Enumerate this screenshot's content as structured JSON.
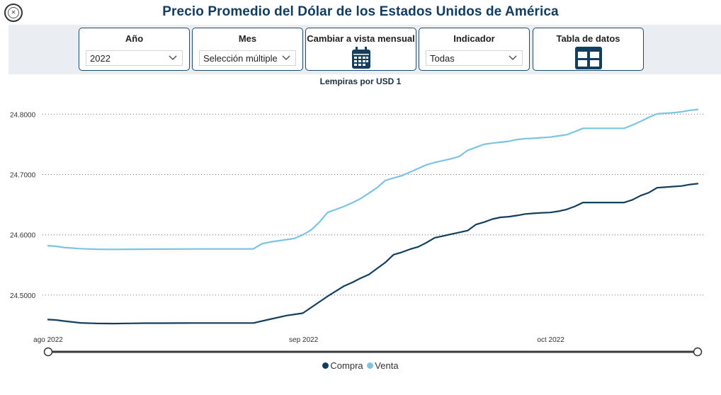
{
  "header": {
    "title": "Precio Promedio del Dólar de los Estados Unidos de América",
    "logo_icon": "seal-icon"
  },
  "filters": {
    "year": {
      "label": "Año",
      "value": "2022"
    },
    "month": {
      "label": "Mes",
      "value": "Selección múltiple"
    },
    "view": {
      "label": "Cambiar a vista mensual",
      "icon": "calendar-icon"
    },
    "indicator": {
      "label": "Indicador",
      "value": "Todas"
    },
    "table": {
      "label": "Tabla de datos",
      "icon": "table-icon"
    }
  },
  "colors": {
    "compra": "#123f5e",
    "venta": "#7cc4e1",
    "accent": "#1b4a6e"
  },
  "chart_data": {
    "type": "line",
    "title": "Lempiras por USD 1",
    "ylim": [
      24.44,
      24.825
    ],
    "yticks": [
      24.5,
      24.6,
      24.7,
      24.8
    ],
    "ytick_labels": [
      "24.5000",
      "24.6000",
      "24.7000",
      "24.8000"
    ],
    "x_start": "2022-08-01",
    "x_end": "2022-10-31",
    "xticks": [
      {
        "day": 0,
        "label": "ago 2022"
      },
      {
        "day": 31,
        "label": "sep 2022"
      },
      {
        "day": 61,
        "label": "oct 2022"
      }
    ],
    "grid": true,
    "legend_position": "bottom-center",
    "series": [
      {
        "name": "Compra",
        "points": [
          [
            0,
            24.4595
          ],
          [
            1,
            24.4588
          ],
          [
            2,
            24.457
          ],
          [
            4,
            24.454
          ],
          [
            6,
            24.453
          ],
          [
            8,
            24.4528
          ],
          [
            10,
            24.4532
          ],
          [
            12,
            24.4535
          ],
          [
            14,
            24.4535
          ],
          [
            16,
            24.4536
          ],
          [
            18,
            24.4537
          ],
          [
            20,
            24.4537
          ],
          [
            25,
            24.4537
          ],
          [
            27,
            24.46
          ],
          [
            29,
            24.466
          ],
          [
            31,
            24.47
          ],
          [
            34,
            24.498
          ],
          [
            36,
            24.515
          ],
          [
            37,
            24.521
          ],
          [
            38,
            24.528
          ],
          [
            39,
            24.534
          ],
          [
            40,
            24.544
          ],
          [
            41,
            24.554
          ],
          [
            42,
            24.567
          ],
          [
            43,
            24.571
          ],
          [
            44,
            24.576
          ],
          [
            45,
            24.58
          ],
          [
            46,
            24.587
          ],
          [
            47,
            24.595
          ],
          [
            48,
            24.598
          ],
          [
            49,
            24.601
          ],
          [
            50,
            24.604
          ],
          [
            51,
            24.607
          ],
          [
            52,
            24.617
          ],
          [
            53,
            24.621
          ],
          [
            54,
            24.626
          ],
          [
            55,
            24.629
          ],
          [
            56,
            24.63
          ],
          [
            57,
            24.632
          ],
          [
            58,
            24.6345
          ],
          [
            59,
            24.6355
          ],
          [
            60,
            24.6365
          ],
          [
            61,
            24.637
          ],
          [
            62,
            24.639
          ],
          [
            63,
            24.642
          ],
          [
            64,
            24.647
          ],
          [
            65,
            24.6535
          ],
          [
            66,
            24.6535
          ],
          [
            67,
            24.6535
          ],
          [
            68,
            24.6535
          ],
          [
            69,
            24.6535
          ],
          [
            70,
            24.6535
          ],
          [
            71,
            24.658
          ],
          [
            72,
            24.665
          ],
          [
            73,
            24.67
          ],
          [
            74,
            24.678
          ],
          [
            75,
            24.679
          ],
          [
            76,
            24.68
          ],
          [
            77,
            24.681
          ],
          [
            78,
            24.6835
          ],
          [
            79,
            24.685
          ]
        ]
      },
      {
        "name": "Venta",
        "points": [
          [
            0,
            24.582
          ],
          [
            1,
            24.581
          ],
          [
            2,
            24.579
          ],
          [
            4,
            24.577
          ],
          [
            6,
            24.576
          ],
          [
            8,
            24.5758
          ],
          [
            10,
            24.576
          ],
          [
            12,
            24.5762
          ],
          [
            14,
            24.5763
          ],
          [
            16,
            24.5764
          ],
          [
            18,
            24.5765
          ],
          [
            20,
            24.5766
          ],
          [
            25,
            24.5766
          ],
          [
            26,
            24.585
          ],
          [
            27,
            24.588
          ],
          [
            29,
            24.592
          ],
          [
            30,
            24.594
          ],
          [
            31,
            24.6
          ],
          [
            32,
            24.608
          ],
          [
            33,
            24.621
          ],
          [
            34,
            24.637
          ],
          [
            35,
            24.642
          ],
          [
            36,
            24.647
          ],
          [
            37,
            24.653
          ],
          [
            38,
            24.66
          ],
          [
            39,
            24.669
          ],
          [
            40,
            24.678
          ],
          [
            41,
            24.69
          ],
          [
            42,
            24.694
          ],
          [
            43,
            24.698
          ],
          [
            44,
            24.704
          ],
          [
            45,
            24.71
          ],
          [
            46,
            24.716
          ],
          [
            47,
            24.72
          ],
          [
            48,
            24.723
          ],
          [
            49,
            24.726
          ],
          [
            50,
            24.73
          ],
          [
            51,
            24.74
          ],
          [
            52,
            24.745
          ],
          [
            53,
            24.75
          ],
          [
            54,
            24.752
          ],
          [
            55,
            24.7535
          ],
          [
            56,
            24.755
          ],
          [
            57,
            24.758
          ],
          [
            58,
            24.7595
          ],
          [
            59,
            24.76
          ],
          [
            60,
            24.761
          ],
          [
            61,
            24.762
          ],
          [
            62,
            24.764
          ],
          [
            63,
            24.766
          ],
          [
            64,
            24.771
          ],
          [
            65,
            24.7765
          ],
          [
            66,
            24.7765
          ],
          [
            67,
            24.7765
          ],
          [
            68,
            24.7765
          ],
          [
            69,
            24.7765
          ],
          [
            70,
            24.7765
          ],
          [
            71,
            24.782
          ],
          [
            72,
            24.788
          ],
          [
            73,
            24.795
          ],
          [
            74,
            24.8005
          ],
          [
            75,
            24.8015
          ],
          [
            76,
            24.8025
          ],
          [
            77,
            24.804
          ],
          [
            78,
            24.8065
          ],
          [
            79,
            24.808
          ]
        ]
      }
    ]
  }
}
